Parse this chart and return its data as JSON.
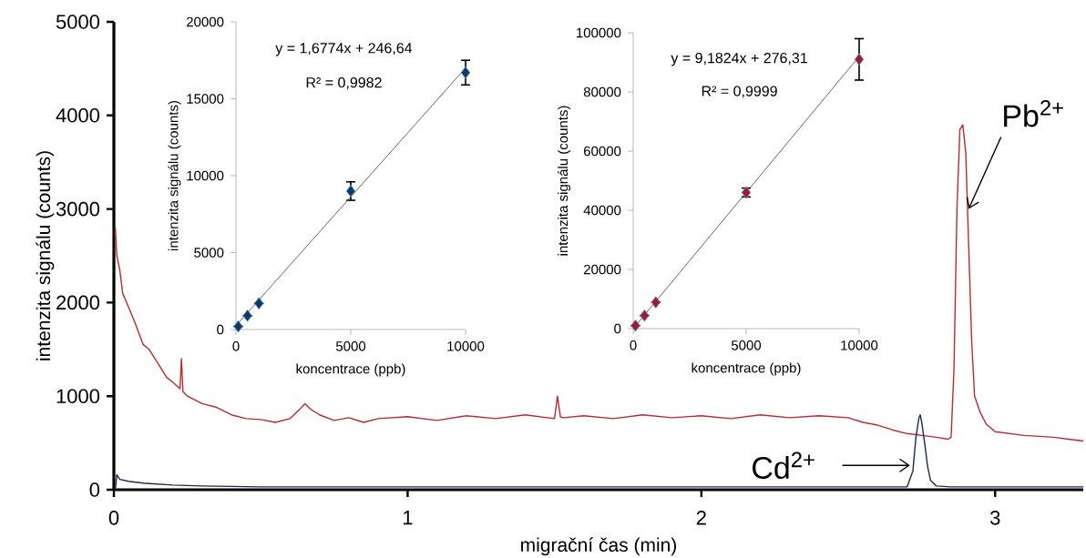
{
  "chart_data": [
    {
      "type": "line",
      "xlabel": "migrační čas (min)",
      "ylabel": "intenzita signálu (counts)",
      "xlim": [
        0,
        3.3
      ],
      "ylim": [
        0,
        5000
      ],
      "xticks": [
        0,
        1,
        2,
        3
      ],
      "yticks": [
        0,
        1000,
        2000,
        3000,
        4000,
        5000
      ],
      "series": [
        {
          "color": "#c0282e",
          "x": [
            0.005,
            0.01,
            0.02,
            0.03,
            0.05,
            0.07,
            0.1,
            0.12,
            0.15,
            0.18,
            0.2,
            0.225,
            0.23,
            0.235,
            0.25,
            0.3,
            0.35,
            0.4,
            0.45,
            0.5,
            0.55,
            0.6,
            0.63,
            0.65,
            0.67,
            0.7,
            0.75,
            0.8,
            0.85,
            0.9,
            1.0,
            1.1,
            1.2,
            1.3,
            1.4,
            1.5,
            1.51,
            1.52,
            1.53,
            1.6,
            1.7,
            1.8,
            1.9,
            2.0,
            2.1,
            2.2,
            2.3,
            2.4,
            2.5,
            2.55,
            2.6,
            2.65,
            2.7,
            2.75,
            2.8,
            2.84,
            2.85,
            2.86,
            2.87,
            2.88,
            2.89,
            2.9,
            2.91,
            2.92,
            2.93,
            2.95,
            2.97,
            3.0,
            3.05,
            3.1,
            3.15,
            3.2,
            3.25,
            3.3
          ],
          "values": [
            2800,
            2500,
            2350,
            2100,
            1950,
            1800,
            1550,
            1500,
            1350,
            1200,
            1150,
            1080,
            1400,
            1050,
            1000,
            920,
            880,
            800,
            760,
            750,
            720,
            760,
            850,
            920,
            860,
            800,
            740,
            770,
            720,
            760,
            780,
            740,
            790,
            760,
            800,
            760,
            1000,
            780,
            770,
            790,
            760,
            800,
            770,
            790,
            760,
            800,
            770,
            790,
            770,
            720,
            690,
            640,
            600,
            580,
            560,
            540,
            560,
            1300,
            3000,
            3850,
            3900,
            3600,
            2600,
            1600,
            1000,
            820,
            700,
            620,
            600,
            580,
            570,
            560,
            540,
            520
          ]
        },
        {
          "color": "#1a2a50",
          "x": [
            0.005,
            0.01,
            0.02,
            0.05,
            0.1,
            0.2,
            0.3,
            0.5,
            1.0,
            1.5,
            2.0,
            2.5,
            2.7,
            2.72,
            2.73,
            2.74,
            2.745,
            2.75,
            2.76,
            2.77,
            2.78,
            2.8,
            2.85,
            3.0,
            3.3
          ],
          "values": [
            0,
            160,
            110,
            90,
            70,
            50,
            40,
            30,
            30,
            30,
            30,
            30,
            30,
            200,
            550,
            760,
            800,
            720,
            500,
            250,
            100,
            40,
            30,
            30,
            30
          ]
        }
      ],
      "annotations": [
        {
          "text": "Pb$^{2+}$",
          "x": 2.91,
          "y": 3000
        },
        {
          "text": "Cd$^{2+}$",
          "x": 2.71,
          "y": 260
        }
      ]
    },
    {
      "type": "scatter",
      "xlabel": "koncentrace (ppb)",
      "ylabel": "intenzita signálu (counts)",
      "xlim": [
        0,
        10000
      ],
      "ylim": [
        0,
        20000
      ],
      "xticks": [
        0,
        5000,
        10000
      ],
      "yticks": [
        0,
        5000,
        10000,
        15000,
        20000
      ],
      "marker": "diamond",
      "series": [
        {
          "type": "scatter",
          "color": "#0d3a66",
          "x": [
            100,
            500,
            1000,
            5000,
            10000
          ],
          "values": [
            200,
            900,
            1700,
            9000,
            16700
          ],
          "errors": [
            null,
            null,
            null,
            600,
            800
          ]
        },
        {
          "type": "line",
          "marker": "none",
          "color": "#404040",
          "x": [
            0,
            10000
          ],
          "values": [
            250,
            17000
          ]
        }
      ],
      "annotations": [
        "y = 1,6774x + 246,64",
        "R² = 0,9982"
      ]
    },
    {
      "type": "scatter",
      "xlabel": "koncentrace (ppb)",
      "ylabel": "intenzita signálu (counts)",
      "xlim": [
        0,
        10000
      ],
      "ylim": [
        0,
        100000
      ],
      "xticks": [
        0,
        5000,
        10000
      ],
      "yticks": [
        0,
        20000,
        40000,
        60000,
        80000,
        100000
      ],
      "marker": "diamond",
      "series": [
        {
          "type": "scatter",
          "color": "#a01c2c",
          "x": [
            100,
            500,
            1000,
            5000,
            10000
          ],
          "values": [
            1000,
            4400,
            8900,
            46000,
            91000
          ],
          "errors": [
            null,
            null,
            null,
            1500,
            7000
          ]
        },
        {
          "type": "line",
          "marker": "none",
          "color": "#404040",
          "x": [
            0,
            10000
          ],
          "values": [
            0,
            92000
          ]
        }
      ],
      "annotations": [
        "y = 9,1824x + 276,31",
        "R² = 0,9999"
      ]
    }
  ]
}
